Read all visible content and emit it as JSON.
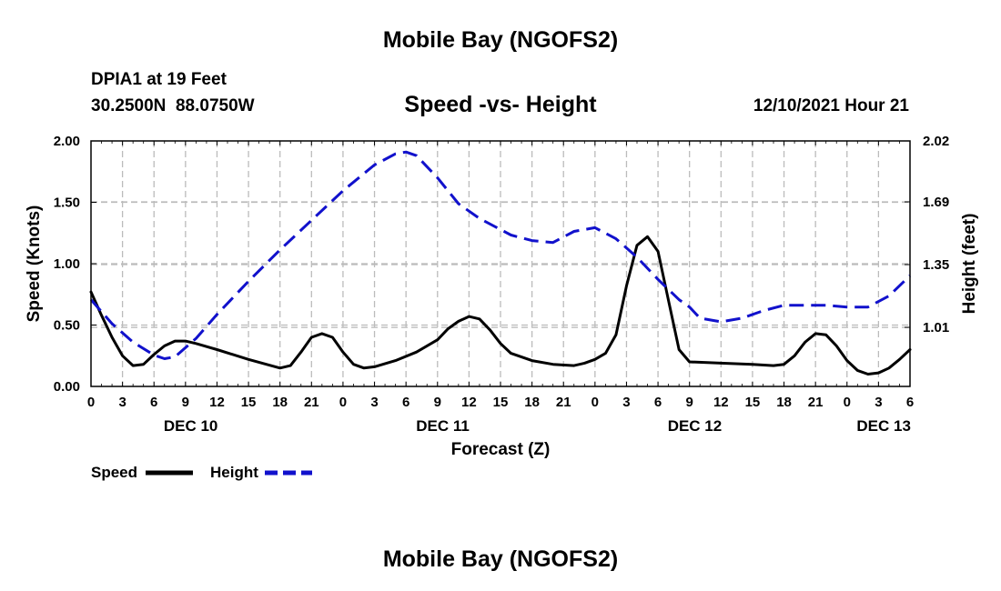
{
  "page": {
    "title": "Mobile Bay (NGOFS2)",
    "station_line1": "DPIA1 at 19 Feet",
    "station_line2": "30.2500N  88.0750W",
    "subtitle": "Speed -vs- Height",
    "forecast_time": "12/10/2021 Hour 21",
    "footer_title": "Mobile Bay (NGOFS2)"
  },
  "legend": {
    "speed_label": "Speed",
    "height_label": "Height"
  },
  "colors": {
    "speed": "#000000",
    "height": "#1111cc",
    "grid": "#bbbbbb"
  },
  "chart_data": {
    "type": "line",
    "title": "Speed -vs- Height",
    "xlabel": "Forecast (Z)",
    "ylabel": "Speed (Knots)",
    "y2label": "Height (feet)",
    "xlim": [
      0,
      78
    ],
    "ylim": [
      0,
      2.0
    ],
    "y2lim": [
      0.69,
      2.02
    ],
    "x_ticks": [
      0,
      3,
      6,
      9,
      12,
      15,
      18,
      21,
      24,
      27,
      30,
      33,
      36,
      39,
      42,
      45,
      48,
      51,
      54,
      57,
      60,
      63,
      66,
      69,
      72,
      75,
      78
    ],
    "x_tick_labels": [
      "0",
      "3",
      "6",
      "9",
      "12",
      "15",
      "18",
      "21",
      "0",
      "3",
      "6",
      "9",
      "12",
      "15",
      "18",
      "21",
      "0",
      "3",
      "6",
      "9",
      "12",
      "15",
      "18",
      "21",
      "0",
      "3",
      "6"
    ],
    "y_ticks": [
      0,
      0.5,
      1.0,
      1.5,
      2.0
    ],
    "y_tick_labels": [
      "0.00",
      "0.50",
      "1.00",
      "1.50",
      "2.00"
    ],
    "y2_ticks": [
      1.01,
      1.35,
      1.69,
      2.02
    ],
    "y2_tick_labels": [
      "1.01",
      "1.35",
      "1.69",
      "2.02"
    ],
    "date_labels": [
      {
        "x": 9.5,
        "label": "DEC 10"
      },
      {
        "x": 33.5,
        "label": "DEC 11"
      },
      {
        "x": 57.5,
        "label": "DEC 12"
      },
      {
        "x": 75.5,
        "label": "DEC 13"
      }
    ],
    "grid": true,
    "legend_position": "bottom-left",
    "series": [
      {
        "name": "Speed",
        "axis": "left",
        "style": "solid",
        "x": [
          0,
          1,
          2,
          3,
          4,
          5,
          6,
          7,
          8,
          9,
          10,
          12,
          15,
          18,
          19,
          20,
          21,
          22,
          23,
          24,
          25,
          26,
          27,
          29,
          31,
          33,
          34,
          35,
          36,
          37,
          38,
          39,
          40,
          42,
          44,
          46,
          47,
          48,
          49,
          50,
          51,
          52,
          53,
          54,
          55,
          56,
          57,
          60,
          63,
          65,
          66,
          67,
          68,
          69,
          70,
          71,
          72,
          73,
          74,
          75,
          76,
          77,
          78
        ],
        "values": [
          0.77,
          0.58,
          0.4,
          0.25,
          0.17,
          0.18,
          0.26,
          0.33,
          0.37,
          0.37,
          0.35,
          0.3,
          0.22,
          0.15,
          0.17,
          0.28,
          0.4,
          0.43,
          0.4,
          0.28,
          0.18,
          0.15,
          0.16,
          0.21,
          0.28,
          0.38,
          0.47,
          0.53,
          0.57,
          0.55,
          0.46,
          0.35,
          0.27,
          0.21,
          0.18,
          0.17,
          0.19,
          0.22,
          0.27,
          0.42,
          0.82,
          1.15,
          1.22,
          1.1,
          0.7,
          0.3,
          0.2,
          0.19,
          0.18,
          0.17,
          0.18,
          0.25,
          0.36,
          0.43,
          0.42,
          0.33,
          0.21,
          0.13,
          0.1,
          0.11,
          0.15,
          0.22,
          0.3
        ]
      },
      {
        "name": "Height",
        "axis": "right",
        "style": "dashed",
        "x": [
          0,
          2,
          4,
          6,
          7,
          8,
          10,
          12,
          15,
          18,
          21,
          24,
          27,
          29,
          30,
          31,
          33,
          35,
          37,
          39,
          40,
          42,
          44,
          45,
          46,
          48,
          50,
          52,
          54,
          56,
          57,
          58,
          60,
          62,
          64,
          66,
          68,
          70,
          72,
          74,
          76,
          78
        ],
        "values": [
          1.16,
          1.03,
          0.93,
          0.86,
          0.84,
          0.85,
          0.95,
          1.08,
          1.26,
          1.43,
          1.59,
          1.75,
          1.89,
          1.95,
          1.96,
          1.94,
          1.82,
          1.68,
          1.6,
          1.54,
          1.51,
          1.48,
          1.47,
          1.5,
          1.53,
          1.55,
          1.49,
          1.39,
          1.27,
          1.16,
          1.12,
          1.06,
          1.04,
          1.06,
          1.1,
          1.13,
          1.13,
          1.13,
          1.12,
          1.12,
          1.18,
          1.29
        ]
      }
    ]
  }
}
